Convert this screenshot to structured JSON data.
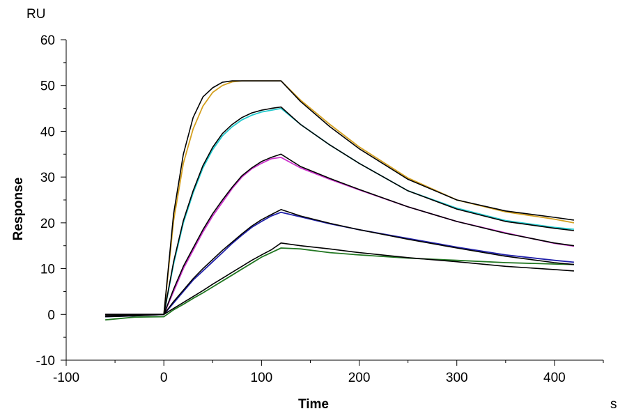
{
  "chart_data": {
    "type": "line",
    "title": "",
    "xlabel": "Time",
    "ylabel": "Response",
    "x_unit": "s",
    "y_unit": "RU",
    "xlim": [
      -100,
      450
    ],
    "ylim": [
      -10,
      60
    ],
    "x_ticks": [
      -100,
      0,
      100,
      200,
      300,
      400
    ],
    "y_ticks": [
      -10,
      0,
      10,
      20,
      30,
      40,
      50,
      60
    ],
    "grid": false,
    "legend": "none",
    "series": [
      {
        "role": "data",
        "color": "#d4a020",
        "x": [
          -60,
          -30,
          0,
          10,
          20,
          30,
          40,
          50,
          60,
          70,
          80,
          90,
          100,
          110,
          120,
          140,
          170,
          200,
          250,
          300,
          350,
          400,
          420
        ],
        "y": [
          0,
          0,
          0,
          20.5,
          33,
          40.5,
          45.5,
          48.5,
          50,
          50.8,
          51,
          51,
          51,
          51,
          51,
          46.8,
          41.5,
          36.6,
          29.8,
          25,
          22.4,
          20.8,
          20
        ]
      },
      {
        "role": "fit",
        "color": "#000000",
        "x": [
          -60,
          -30,
          0,
          10,
          20,
          30,
          40,
          50,
          60,
          70,
          80,
          90,
          100,
          110,
          120,
          140,
          170,
          200,
          250,
          300,
          350,
          400,
          420
        ],
        "y": [
          0,
          0,
          0,
          22,
          35,
          43,
          47.5,
          49.5,
          50.7,
          51,
          51,
          51,
          51,
          51,
          51,
          46.5,
          41,
          36.2,
          29.5,
          25,
          22.6,
          21.2,
          20.6
        ]
      },
      {
        "role": "data",
        "color": "#22c8cc",
        "x": [
          -60,
          -30,
          0,
          10,
          20,
          30,
          40,
          50,
          60,
          70,
          80,
          90,
          100,
          110,
          120,
          140,
          170,
          200,
          250,
          300,
          350,
          400,
          420
        ],
        "y": [
          0,
          0,
          0,
          11,
          20,
          26.5,
          32,
          36,
          39,
          41,
          42.5,
          43.5,
          44.2,
          44.6,
          45,
          41.5,
          37,
          33,
          27,
          23.2,
          20.5,
          19,
          18.6
        ]
      },
      {
        "role": "fit",
        "color": "#000000",
        "x": [
          -60,
          -30,
          0,
          10,
          20,
          30,
          40,
          50,
          60,
          70,
          80,
          90,
          100,
          110,
          120,
          140,
          170,
          200,
          250,
          300,
          350,
          400,
          420
        ],
        "y": [
          0,
          0,
          0,
          11.5,
          20.5,
          27,
          32.5,
          36.5,
          39.5,
          41.5,
          43,
          44,
          44.6,
          45,
          45.3,
          41.5,
          37,
          33,
          27,
          23,
          20.3,
          18.8,
          18.3
        ]
      },
      {
        "role": "data",
        "color": "#cc33cc",
        "x": [
          -60,
          -30,
          0,
          10,
          20,
          30,
          40,
          50,
          60,
          70,
          80,
          90,
          100,
          110,
          120,
          140,
          170,
          200,
          250,
          300,
          350,
          400,
          420
        ],
        "y": [
          0,
          0,
          0,
          5,
          10,
          14,
          18,
          21.5,
          24.5,
          27.5,
          30,
          31.8,
          33,
          34,
          34.3,
          32,
          29.5,
          27.2,
          23.5,
          20.3,
          17.8,
          15.5,
          14.9
        ]
      },
      {
        "role": "fit",
        "color": "#000000",
        "x": [
          -60,
          -30,
          0,
          10,
          20,
          30,
          40,
          50,
          60,
          70,
          80,
          90,
          100,
          110,
          120,
          140,
          170,
          200,
          250,
          300,
          350,
          400,
          420
        ],
        "y": [
          0,
          0,
          0,
          5.5,
          10.5,
          14.5,
          18.5,
          22,
          25,
          27.8,
          30.3,
          32,
          33.4,
          34.3,
          35,
          32.3,
          29.7,
          27.3,
          23.5,
          20.3,
          17.7,
          15.6,
          15
        ]
      },
      {
        "role": "data",
        "color": "#2020aa",
        "x": [
          -60,
          -30,
          0,
          10,
          20,
          30,
          40,
          50,
          60,
          70,
          80,
          90,
          100,
          110,
          120,
          140,
          170,
          200,
          250,
          300,
          350,
          400,
          420
        ],
        "y": [
          -0.5,
          -0.3,
          0,
          2.5,
          5,
          7.5,
          9.5,
          11.5,
          13.5,
          15.5,
          17.3,
          19,
          20.3,
          21.5,
          22.3,
          21.3,
          19.8,
          18.5,
          16.6,
          14.7,
          13,
          11.8,
          11.4
        ]
      },
      {
        "role": "fit",
        "color": "#000000",
        "x": [
          -60,
          -30,
          0,
          10,
          20,
          30,
          40,
          50,
          60,
          70,
          80,
          90,
          100,
          110,
          120,
          140,
          170,
          200,
          250,
          300,
          350,
          400,
          420
        ],
        "y": [
          -0.5,
          -0.3,
          0,
          2.8,
          5.3,
          7.8,
          10,
          12,
          14,
          15.8,
          17.6,
          19.3,
          20.7,
          21.8,
          22.9,
          21.5,
          19.9,
          18.5,
          16.4,
          14.5,
          12.7,
          11.3,
          10.9
        ]
      },
      {
        "role": "data",
        "color": "#227722",
        "x": [
          -60,
          -30,
          0,
          10,
          20,
          30,
          40,
          50,
          60,
          70,
          80,
          90,
          100,
          110,
          120,
          140,
          170,
          200,
          250,
          300,
          350,
          400,
          420
        ],
        "y": [
          -1.2,
          -0.6,
          -0.5,
          1,
          2.2,
          3.5,
          4.7,
          6,
          7.3,
          8.6,
          9.9,
          11.2,
          12.5,
          13.5,
          14.5,
          14.3,
          13.5,
          13,
          12.3,
          11.8,
          11.3,
          11,
          10.9
        ]
      },
      {
        "role": "fit",
        "color": "#000000",
        "x": [
          -60,
          -30,
          0,
          10,
          20,
          30,
          40,
          50,
          60,
          70,
          80,
          90,
          100,
          110,
          120,
          140,
          170,
          200,
          250,
          300,
          350,
          400,
          420
        ],
        "y": [
          -0.3,
          -0.1,
          0,
          1.3,
          2.6,
          3.9,
          5.2,
          6.6,
          7.9,
          9.2,
          10.5,
          11.8,
          13,
          14.1,
          15.6,
          15,
          14.3,
          13.5,
          12.4,
          11.5,
          10.5,
          9.8,
          9.5
        ]
      }
    ]
  }
}
